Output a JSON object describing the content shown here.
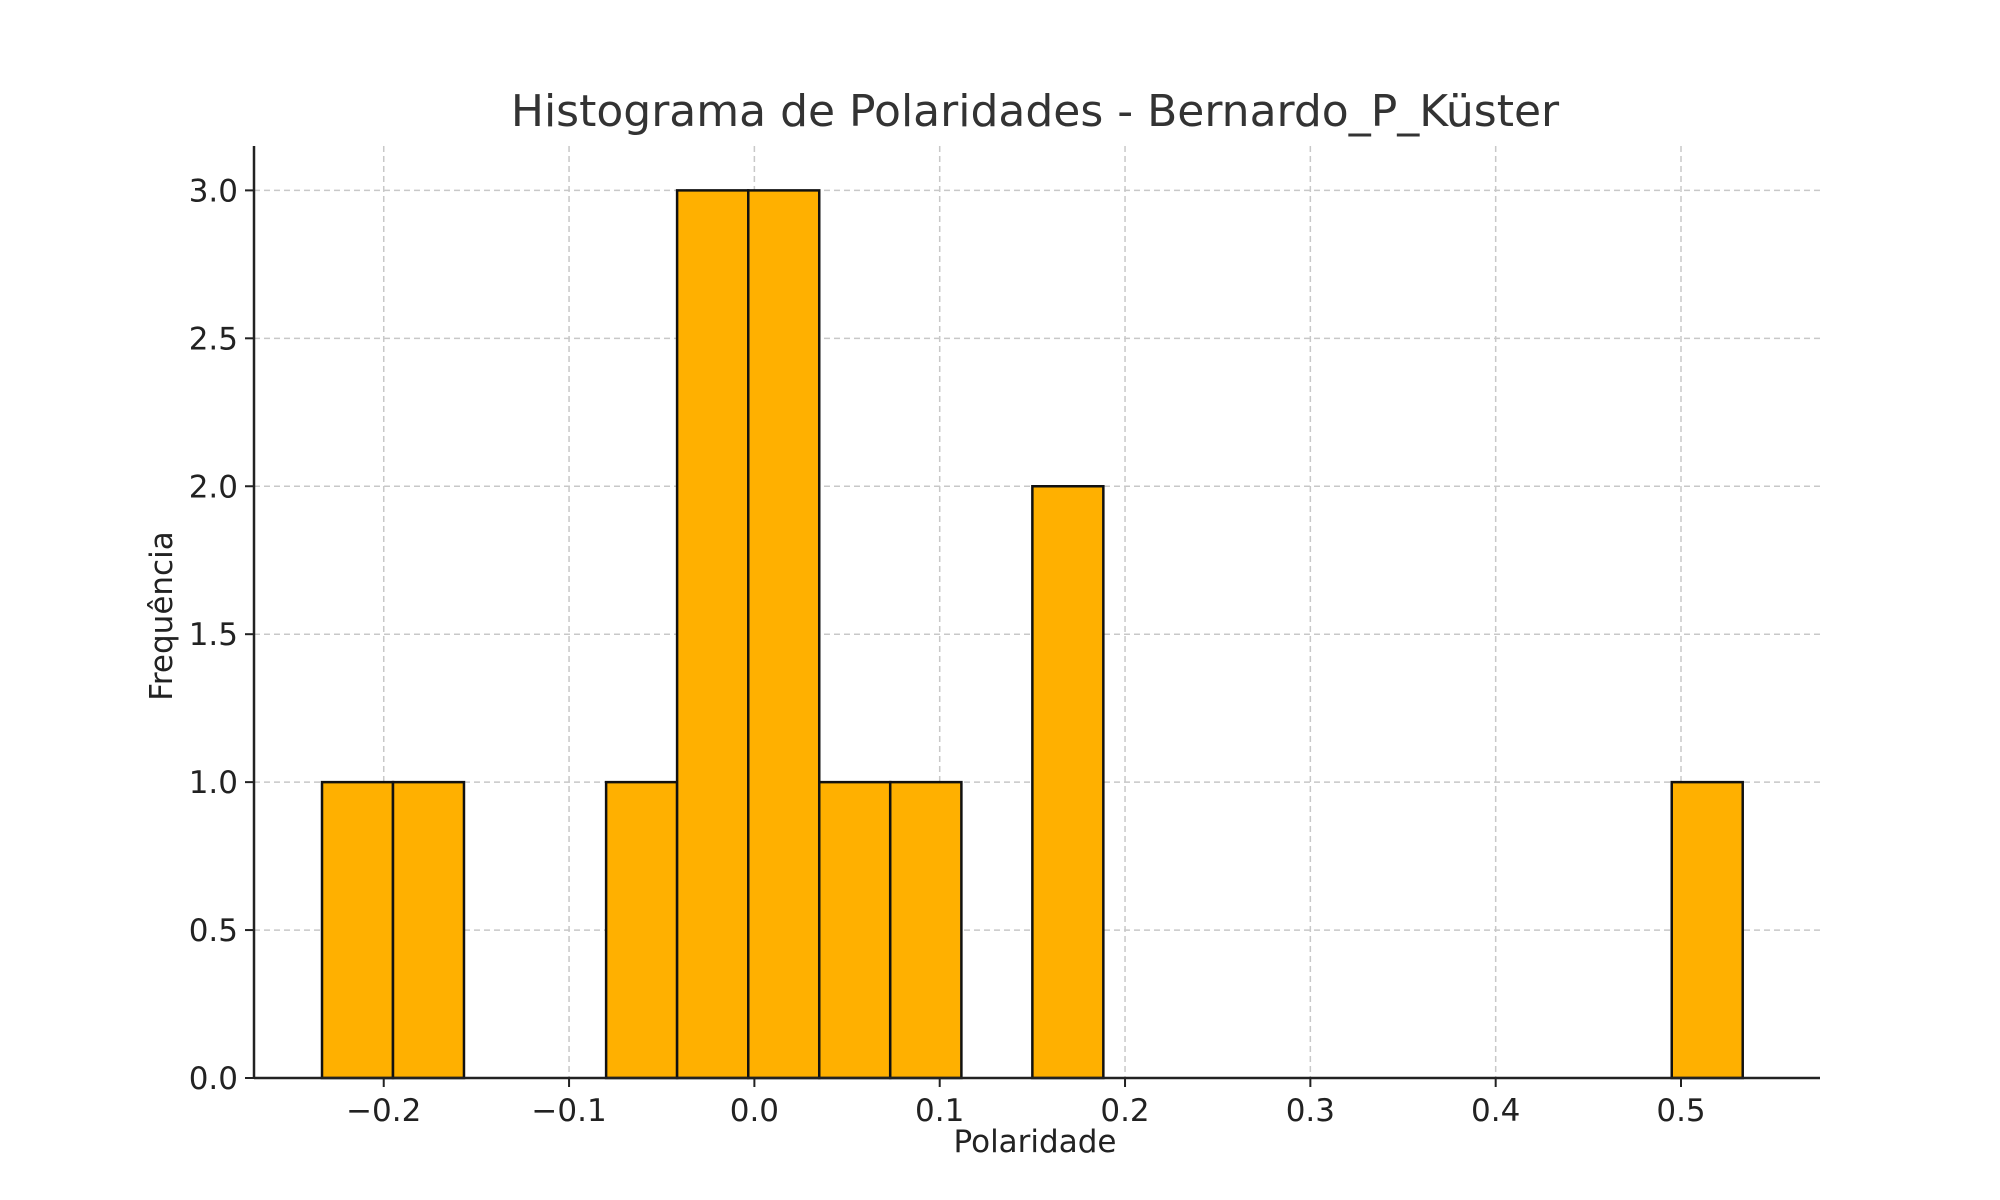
{
  "chart_data": {
    "type": "bar",
    "title": "Histograma de Polaridades - Bernardo_P_Küster",
    "xlabel": "Polaridade",
    "ylabel": "Frequência",
    "xlim": [
      -0.27,
      0.575
    ],
    "ylim": [
      0,
      3.15
    ],
    "x_ticks": [
      -0.2,
      -0.1,
      0.0,
      0.1,
      0.2,
      0.3,
      0.4,
      0.5
    ],
    "x_tick_labels": [
      "−0.2",
      "−0.1",
      "0.0",
      "0.1",
      "0.2",
      "0.3",
      "0.4",
      "0.5"
    ],
    "y_ticks": [
      0,
      0.5,
      1.0,
      1.5,
      2.0,
      2.5,
      3.0
    ],
    "y_tick_labels": [
      "0.0",
      "0.5",
      "1.0",
      "1.5",
      "2.0",
      "2.5",
      "3.0"
    ],
    "grid": true,
    "bar_color": "#FFB000",
    "edge_color": "#111111",
    "bins": [
      {
        "x0": -0.2333,
        "x1": -0.195,
        "count": 1
      },
      {
        "x0": -0.195,
        "x1": -0.1567,
        "count": 1
      },
      {
        "x0": -0.1567,
        "x1": -0.1183,
        "count": 0
      },
      {
        "x0": -0.1183,
        "x1": -0.08,
        "count": 0
      },
      {
        "x0": -0.08,
        "x1": -0.0417,
        "count": 1
      },
      {
        "x0": -0.0417,
        "x1": -0.0033,
        "count": 3
      },
      {
        "x0": -0.0033,
        "x1": 0.035,
        "count": 3
      },
      {
        "x0": 0.035,
        "x1": 0.0733,
        "count": 1
      },
      {
        "x0": 0.0733,
        "x1": 0.1117,
        "count": 1
      },
      {
        "x0": 0.1117,
        "x1": 0.15,
        "count": 0
      },
      {
        "x0": 0.15,
        "x1": 0.1883,
        "count": 2
      },
      {
        "x0": 0.1883,
        "x1": 0.2267,
        "count": 0
      },
      {
        "x0": 0.2267,
        "x1": 0.265,
        "count": 0
      },
      {
        "x0": 0.265,
        "x1": 0.3033,
        "count": 0
      },
      {
        "x0": 0.3033,
        "x1": 0.3417,
        "count": 0
      },
      {
        "x0": 0.3417,
        "x1": 0.38,
        "count": 0
      },
      {
        "x0": 0.38,
        "x1": 0.4183,
        "count": 0
      },
      {
        "x0": 0.4183,
        "x1": 0.4567,
        "count": 0
      },
      {
        "x0": 0.4567,
        "x1": 0.495,
        "count": 0
      },
      {
        "x0": 0.495,
        "x1": 0.5333,
        "count": 1
      }
    ]
  }
}
